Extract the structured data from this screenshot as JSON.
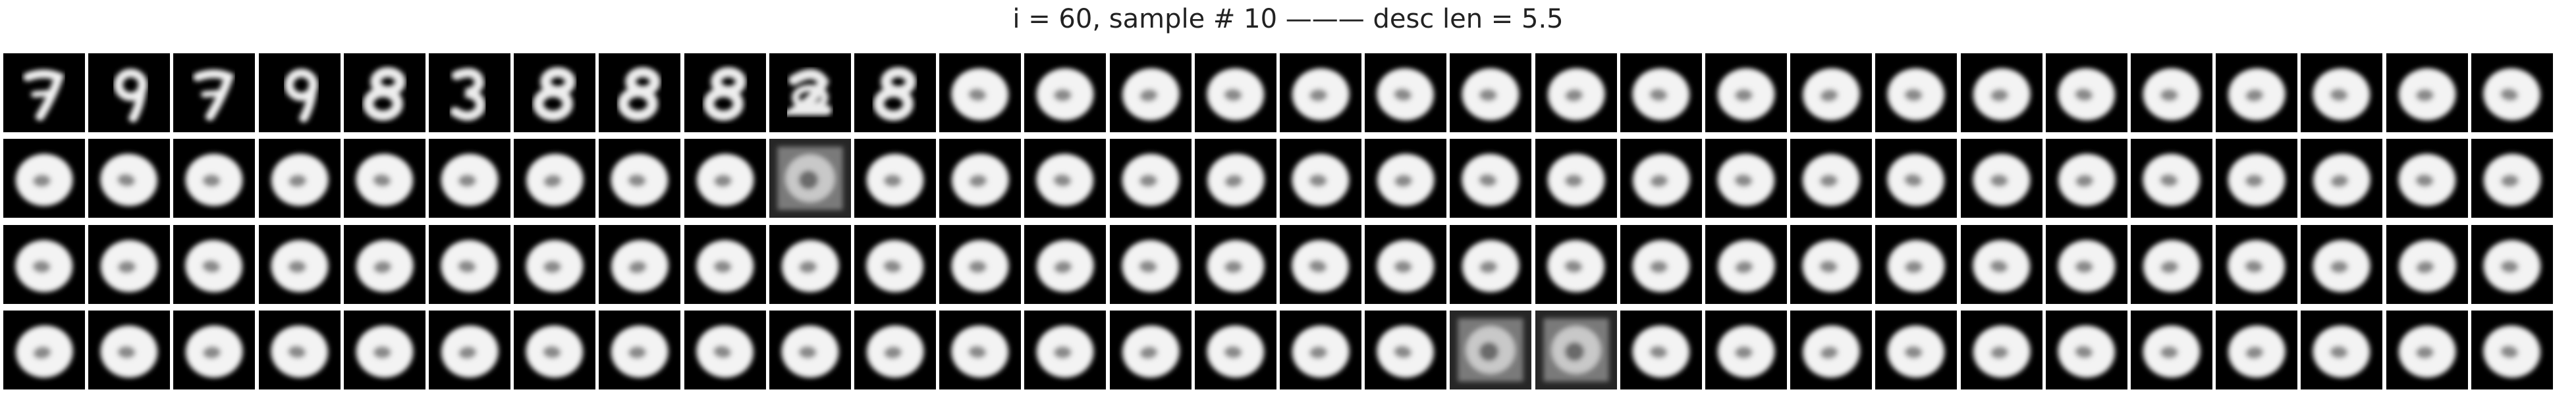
{
  "title": "i = 60, sample # 10 ——— desc len = 5.5",
  "grid": {
    "rows": 4,
    "cols": 30,
    "cells": [
      [
        "7",
        "9",
        "7",
        "9",
        "8",
        "3",
        "8",
        "8",
        "8",
        "2",
        "8",
        "0",
        "0",
        "0",
        "0",
        "0",
        "0",
        "0",
        "0",
        "0",
        "0",
        "0",
        "0",
        "0",
        "0",
        "0",
        "0",
        "0",
        "0",
        "0"
      ],
      [
        "0",
        "0",
        "0",
        "0",
        "0",
        "0",
        "0",
        "0",
        "0",
        "noise",
        "0",
        "0",
        "0",
        "0",
        "0",
        "0",
        "0",
        "0",
        "0",
        "0",
        "0",
        "0",
        "0",
        "0",
        "0",
        "0",
        "0",
        "0",
        "0",
        "0"
      ],
      [
        "0",
        "0",
        "0",
        "0",
        "0",
        "0",
        "0",
        "0",
        "0",
        "0",
        "0",
        "0",
        "0",
        "0",
        "0",
        "0",
        "0",
        "0",
        "0",
        "0",
        "0",
        "0",
        "0",
        "0",
        "0",
        "0",
        "0",
        "0",
        "0",
        "0"
      ],
      [
        "0",
        "0",
        "0",
        "0",
        "0",
        "0",
        "0",
        "0",
        "0",
        "0",
        "0",
        "0",
        "0",
        "0",
        "0",
        "0",
        "0",
        "noise",
        "noise",
        "0",
        "0",
        "0",
        "0",
        "0",
        "0",
        "0",
        "0",
        "0",
        "0",
        "0"
      ]
    ]
  }
}
